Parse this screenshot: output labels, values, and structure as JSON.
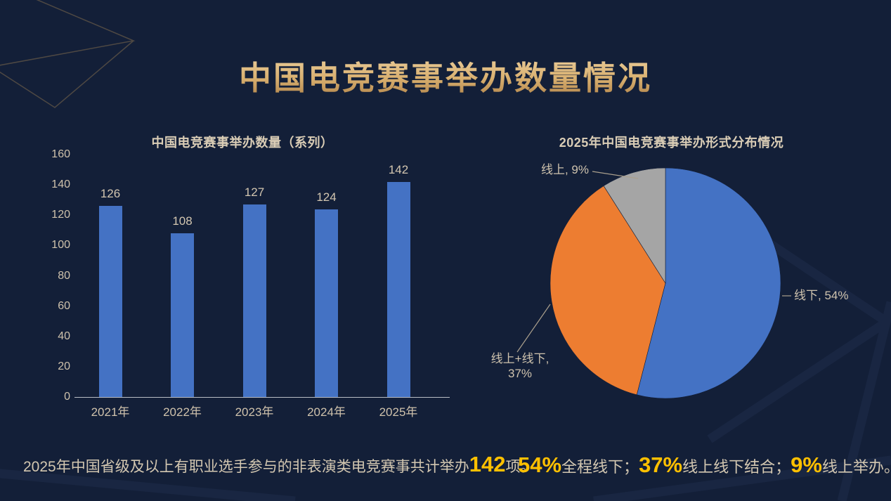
{
  "slide_title": "中国电竞赛事举办数量情况",
  "colors": {
    "background": "#131F38",
    "title_gold": "#D2A96A",
    "body_text": "#D3C7B1",
    "highlight_yellow": "#FFC000",
    "bar_blue": "#4472C4",
    "pie_blue": "#4472C4",
    "pie_orange": "#ED7D31",
    "pie_gray": "#A5A5A5",
    "axis_line": "#B9BDC4"
  },
  "chart_data": [
    {
      "type": "bar",
      "title": "中国电竞赛事举办数量（系列）",
      "categories": [
        "2021年",
        "2022年",
        "2023年",
        "2024年",
        "2025年"
      ],
      "values": [
        126,
        108,
        127,
        124,
        142
      ],
      "xlabel": "",
      "ylabel": "",
      "ylim": [
        0,
        160
      ],
      "ytick_step": 20,
      "grid": false,
      "data_labels": true,
      "bar_color": "#4472C4",
      "legend_position": "none"
    },
    {
      "type": "pie",
      "title": "2025年中国电竞赛事举办形式分布情况",
      "slices": [
        {
          "label": "线下",
          "value": 54,
          "color": "#4472C4",
          "display_lines": [
            "线下, 54%"
          ]
        },
        {
          "label": "线上+线下",
          "value": 37,
          "color": "#ED7D31",
          "display_lines": [
            "线上+线下,",
            "37%"
          ]
        },
        {
          "label": "线上",
          "value": 9,
          "color": "#A5A5A5",
          "display_lines": [
            "线上, 9%"
          ]
        }
      ],
      "start_angle": "top",
      "direction": "clockwise",
      "legend_position": "none",
      "label_style": "outside-with-leader-lines"
    }
  ],
  "footnotes": {
    "left": {
      "segments": [
        {
          "text": "2025年中国省级及以上有职业选手参与的非表演类电竞赛事共计举办",
          "highlight": false
        },
        {
          "text": "142",
          "highlight": true
        },
        {
          "text": "项。",
          "highlight": false
        }
      ]
    },
    "right": {
      "segments": [
        {
          "text": "54%",
          "highlight": true
        },
        {
          "text": "全程线下；",
          "highlight": false
        },
        {
          "text": "37%",
          "highlight": true
        },
        {
          "text": "线上线下结合；",
          "highlight": false
        },
        {
          "text": "9%",
          "highlight": true
        },
        {
          "text": "线上举办。",
          "highlight": false
        }
      ]
    }
  }
}
